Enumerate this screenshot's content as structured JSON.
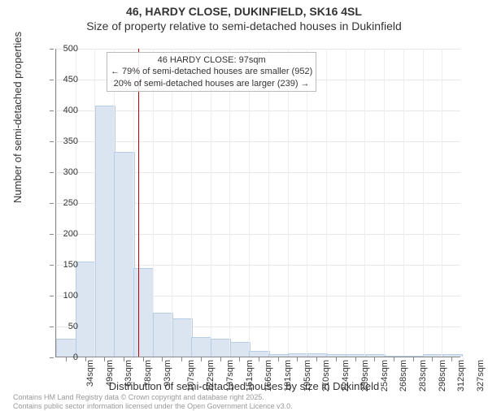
{
  "title_main": "46, HARDY CLOSE, DUKINFIELD, SK16 4SL",
  "title_sub": "Size of property relative to semi-detached houses in Dukinfield",
  "y_axis_label": "Number of semi-detached properties",
  "x_axis_label": "Distribution of semi-detached houses by size in Dukinfield",
  "footer_line1": "Contains HM Land Registry data © Crown copyright and database right 2025.",
  "footer_line2": "Contains public sector information licensed under the Open Government Licence v3.0.",
  "chart": {
    "type": "histogram",
    "y_lim": [
      0,
      500
    ],
    "y_tick_step": 50,
    "x_categories": [
      "34sqm",
      "49sqm",
      "63sqm",
      "78sqm",
      "93sqm",
      "107sqm",
      "122sqm",
      "137sqm",
      "151sqm",
      "166sqm",
      "181sqm",
      "195sqm",
      "210sqm",
      "224sqm",
      "239sqm",
      "254sqm",
      "268sqm",
      "283sqm",
      "298sqm",
      "312sqm",
      "327sqm"
    ],
    "values": [
      27,
      152,
      405,
      330,
      142,
      70,
      60,
      30,
      28,
      23,
      8,
      2,
      4,
      4,
      2,
      2,
      3,
      0,
      0,
      2,
      2
    ],
    "bar_fill": "#dbe5f1",
    "bar_stroke": "#b8cce4",
    "marker_color": "#c00000",
    "marker_bin_index": 4,
    "grid_color": "#e8e8e8",
    "background_color": "#ffffff",
    "title_fontsize": 14,
    "label_fontsize": 13,
    "tick_fontsize": 11
  },
  "annotation": {
    "line1": "46 HARDY CLOSE: 97sqm",
    "line2": "← 79% of semi-detached houses are smaller (952)",
    "line3": "20% of semi-detached houses are larger (239) →"
  }
}
